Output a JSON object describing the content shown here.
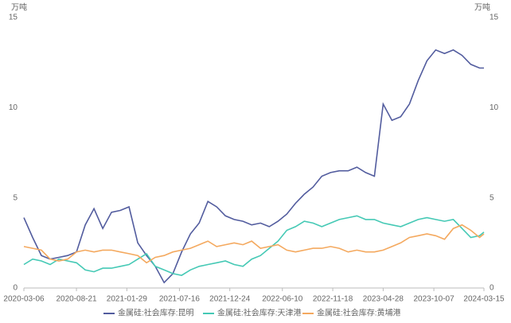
{
  "chart_data": {
    "type": "line",
    "ylabel": "万吨",
    "y2label": "万吨",
    "x": [
      "2020-03-06",
      "2020-04-03",
      "2020-05-01",
      "2020-05-29",
      "2020-06-26",
      "2020-07-24",
      "2020-08-21",
      "2020-09-18",
      "2020-10-16",
      "2020-11-13",
      "2020-12-11",
      "2021-01-08",
      "2021-02-05",
      "2021-03-05",
      "2021-04-02",
      "2021-04-30",
      "2021-05-28",
      "2021-06-25",
      "2021-07-23",
      "2021-08-20",
      "2021-09-17",
      "2021-10-15",
      "2021-11-12",
      "2021-12-10",
      "2022-01-07",
      "2022-02-04",
      "2022-03-04",
      "2022-04-01",
      "2022-04-29",
      "2022-05-27",
      "2022-06-24",
      "2022-07-22",
      "2022-08-19",
      "2022-09-16",
      "2022-10-14",
      "2022-11-11",
      "2022-12-09",
      "2023-01-06",
      "2023-02-03",
      "2023-03-03",
      "2023-03-31",
      "2023-04-28",
      "2023-05-26",
      "2023-06-23",
      "2023-07-21",
      "2023-08-18",
      "2023-09-15",
      "2023-10-13",
      "2023-11-10",
      "2023-12-08",
      "2024-01-05",
      "2024-02-02",
      "2024-03-01",
      "2024-03-15"
    ],
    "xlim": [
      "2020-03-06",
      "2024-03-15"
    ],
    "xticks": [
      "2020-03-06",
      "2020-08-21",
      "2021-01-29",
      "2021-07-16",
      "2021-12-24",
      "2022-06-10",
      "2022-11-18",
      "2023-04-28",
      "2023-10-07",
      "2024-03-15"
    ],
    "ylim": [
      0,
      15
    ],
    "yticks": [
      0,
      5,
      10,
      15
    ],
    "y2lim": [
      0,
      15
    ],
    "y2ticks": [
      0,
      5,
      10,
      15
    ],
    "legend": "bottom",
    "series": [
      {
        "name": "金属硅:社会库存:昆明",
        "color": "#525c9e",
        "values": [
          3.9,
          2.8,
          1.8,
          1.6,
          1.7,
          1.8,
          2.0,
          3.5,
          4.4,
          3.3,
          4.2,
          4.3,
          4.5,
          2.5,
          1.8,
          1.2,
          0.3,
          0.8,
          2.0,
          3.0,
          3.6,
          4.8,
          4.5,
          4.0,
          3.8,
          3.7,
          3.5,
          3.6,
          3.4,
          3.7,
          4.1,
          4.7,
          5.2,
          5.6,
          6.2,
          6.4,
          6.5,
          6.5,
          6.7,
          6.4,
          6.2,
          10.2,
          9.3,
          9.5,
          10.2,
          11.5,
          12.6,
          13.2,
          13.0,
          13.2,
          12.9,
          12.4,
          12.2,
          12.2
        ]
      },
      {
        "name": "金属硅:社会库存:天津港",
        "color": "#45c9b5",
        "values": [
          1.3,
          1.6,
          1.5,
          1.3,
          1.6,
          1.5,
          1.4,
          1.0,
          0.9,
          1.1,
          1.1,
          1.2,
          1.3,
          1.6,
          1.9,
          1.2,
          1.0,
          0.8,
          0.7,
          1.0,
          1.2,
          1.3,
          1.4,
          1.5,
          1.3,
          1.2,
          1.6,
          1.8,
          2.2,
          2.6,
          3.2,
          3.4,
          3.7,
          3.6,
          3.4,
          3.6,
          3.8,
          3.9,
          4.0,
          3.8,
          3.8,
          3.6,
          3.5,
          3.4,
          3.6,
          3.8,
          3.9,
          3.8,
          3.7,
          3.8,
          3.3,
          2.8,
          2.9,
          3.1
        ]
      },
      {
        "name": "金属硅:社会库存:黄埔港",
        "color": "#f4a95f",
        "values": [
          2.3,
          2.2,
          2.1,
          1.6,
          1.5,
          1.6,
          2.0,
          2.1,
          2.0,
          2.1,
          2.1,
          2.0,
          1.9,
          1.8,
          1.4,
          1.7,
          1.8,
          2.0,
          2.1,
          2.2,
          2.4,
          2.6,
          2.3,
          2.4,
          2.5,
          2.4,
          2.6,
          2.2,
          2.3,
          2.4,
          2.1,
          2.0,
          2.1,
          2.2,
          2.2,
          2.3,
          2.2,
          2.0,
          2.1,
          2.0,
          2.0,
          2.1,
          2.3,
          2.5,
          2.8,
          2.9,
          3.0,
          2.9,
          2.7,
          3.3,
          3.5,
          3.2,
          2.8,
          3.0
        ]
      }
    ]
  }
}
